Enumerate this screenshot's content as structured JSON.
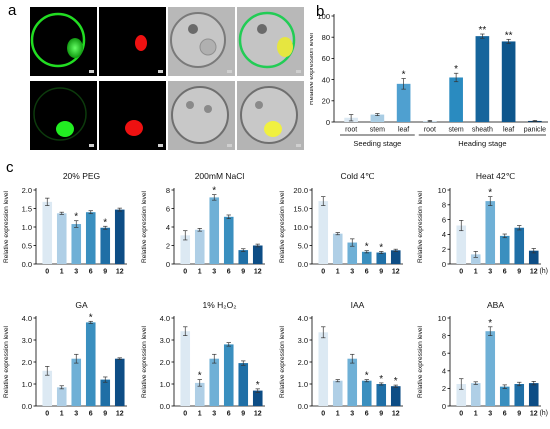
{
  "figure": {
    "panel_a": "a",
    "panel_b": "b",
    "panel_c": "c",
    "microscopy_tiles": [
      {
        "row": 1,
        "channel": "GFP"
      },
      {
        "row": 1,
        "channel": "RFP"
      },
      {
        "row": 1,
        "channel": "Bright"
      },
      {
        "row": 1,
        "channel": "Merge"
      },
      {
        "row": 2,
        "channel": "GFP"
      },
      {
        "row": 2,
        "channel": "RFP"
      },
      {
        "row": 2,
        "channel": "Bright"
      },
      {
        "row": 2,
        "channel": "Merge"
      }
    ],
    "time_unit": "(h)",
    "asterisk": "*",
    "double_asterisk": "**"
  },
  "colors": {
    "shade0": "#dce9f3",
    "shade1": "#afcfe6",
    "shade3": "#6fb0d6",
    "shade6": "#3a8fbf",
    "shade9": "#1f6fa6",
    "shade12": "#0d4d85",
    "gfp": "#22dd22",
    "rfp": "#ee1111"
  },
  "chart_data": [
    {
      "id": "b",
      "type": "bar",
      "ylabel": "Relative expression level",
      "ylim": [
        0,
        100
      ],
      "yticks": [
        0,
        20,
        40,
        60,
        80,
        100
      ],
      "categories": [
        "root",
        "stem",
        "leaf",
        "root",
        "stem",
        "sheath",
        "leaf",
        "panicle"
      ],
      "values": [
        4,
        7,
        36,
        1,
        42,
        81,
        76,
        1
      ],
      "errors": [
        3,
        1,
        5,
        0.5,
        4,
        2,
        2,
        0.5
      ],
      "marks": [
        "",
        "",
        "*",
        "",
        "*",
        "**",
        "**",
        ""
      ],
      "groups": [
        {
          "label": "Seeding stage",
          "from": 0,
          "to": 2
        },
        {
          "label": "Heading stage",
          "from": 3,
          "to": 7
        }
      ]
    },
    {
      "id": "peg",
      "type": "bar",
      "title": "20% PEG",
      "ylabel": "Relative expression level",
      "ylim": [
        0,
        2.0
      ],
      "yticks": [
        "0.0",
        "0.5",
        "1.0",
        "1.5",
        "2.0"
      ],
      "categories": [
        "0",
        "1",
        "3",
        "6",
        "9",
        "12"
      ],
      "values": [
        1.68,
        1.37,
        1.08,
        1.4,
        0.98,
        1.47
      ],
      "errors": [
        0.1,
        0.03,
        0.09,
        0.04,
        0.04,
        0.04
      ],
      "marks": [
        "",
        "",
        "*",
        "",
        "*",
        ""
      ]
    },
    {
      "id": "nacl",
      "type": "bar",
      "title": "200mM NaCl",
      "ylabel": "Relative expression level",
      "ylim": [
        0,
        8
      ],
      "yticks": [
        "0",
        "2",
        "4",
        "6",
        "8"
      ],
      "categories": [
        "0",
        "1",
        "3",
        "6",
        "9",
        "12"
      ],
      "values": [
        3.1,
        3.7,
        7.2,
        5.1,
        1.5,
        2.0
      ],
      "errors": [
        0.5,
        0.15,
        0.3,
        0.2,
        0.15,
        0.15
      ],
      "marks": [
        "",
        "",
        "*",
        "",
        "",
        ""
      ]
    },
    {
      "id": "cold",
      "type": "bar",
      "title": "Cold  4℃",
      "ylabel": "Relative expression level",
      "ylim": [
        0,
        20.0
      ],
      "yticks": [
        "0.0",
        "5.0",
        "10.0",
        "15.0",
        "20.0"
      ],
      "categories": [
        "0",
        "1",
        "3",
        "6",
        "9",
        "12"
      ],
      "values": [
        17.0,
        8.2,
        5.8,
        3.3,
        3.1,
        3.7
      ],
      "errors": [
        1.2,
        0.3,
        1.0,
        0.3,
        0.3,
        0.3
      ],
      "marks": [
        "",
        "",
        "",
        "*",
        "*",
        ""
      ]
    },
    {
      "id": "heat",
      "type": "bar",
      "title": "Heat  42℃",
      "ylabel": "Relative expression level",
      "ylim": [
        0,
        10
      ],
      "yticks": [
        "0",
        "2",
        "4",
        "6",
        "8",
        "10"
      ],
      "categories": [
        "0",
        "1",
        "3",
        "6",
        "9",
        "12"
      ],
      "values": [
        5.2,
        1.3,
        8.5,
        3.8,
        4.9,
        1.8
      ],
      "errors": [
        0.7,
        0.4,
        0.6,
        0.25,
        0.3,
        0.3
      ],
      "marks": [
        "",
        "",
        "*",
        "",
        "",
        ""
      ]
    },
    {
      "id": "ga",
      "type": "bar",
      "title": "GA",
      "ylabel": "Relative expression level",
      "ylim": [
        0,
        4.0
      ],
      "yticks": [
        "0.0",
        "1.0",
        "2.0",
        "3.0",
        "4.0"
      ],
      "categories": [
        "0",
        "1",
        "3",
        "6",
        "9",
        "12"
      ],
      "values": [
        1.6,
        0.85,
        2.15,
        3.8,
        1.2,
        2.15
      ],
      "errors": [
        0.2,
        0.07,
        0.2,
        0.05,
        0.12,
        0.04
      ],
      "marks": [
        "",
        "",
        "",
        "*",
        "",
        ""
      ]
    },
    {
      "id": "h2o2",
      "type": "bar",
      "title": "1% H₂O₂",
      "ylabel": "Relative expression level",
      "ylim": [
        0,
        4.0
      ],
      "yticks": [
        "0.0",
        "1.0",
        "2.0",
        "3.0",
        "4.0"
      ],
      "categories": [
        "0",
        "1",
        "3",
        "6",
        "9",
        "12"
      ],
      "values": [
        3.4,
        1.05,
        2.15,
        2.8,
        1.95,
        0.7
      ],
      "errors": [
        0.2,
        0.15,
        0.2,
        0.08,
        0.1,
        0.08
      ],
      "marks": [
        "",
        "*",
        "",
        "",
        "",
        "*"
      ]
    },
    {
      "id": "iaa",
      "type": "bar",
      "title": "IAA",
      "ylabel": "Relative expression level",
      "ylim": [
        0,
        4.0
      ],
      "yticks": [
        "0.0",
        "1.0",
        "2.0",
        "3.0",
        "4.0"
      ],
      "categories": [
        "0",
        "1",
        "3",
        "6",
        "9",
        "12"
      ],
      "values": [
        3.35,
        1.15,
        2.15,
        1.15,
        1.0,
        0.9
      ],
      "errors": [
        0.25,
        0.05,
        0.2,
        0.05,
        0.05,
        0.05
      ],
      "marks": [
        "",
        "",
        "",
        "*",
        "*",
        "*"
      ]
    },
    {
      "id": "aba",
      "type": "bar",
      "title": "ABA",
      "ylabel": "Relative expression level",
      "ylim": [
        0,
        10
      ],
      "yticks": [
        "0",
        "2",
        "4",
        "6",
        "8",
        "10"
      ],
      "categories": [
        "0",
        "1",
        "3",
        "6",
        "9",
        "12"
      ],
      "values": [
        2.5,
        2.6,
        8.5,
        2.2,
        2.5,
        2.6
      ],
      "errors": [
        0.6,
        0.15,
        0.5,
        0.2,
        0.2,
        0.2
      ],
      "marks": [
        "",
        "",
        "*",
        "",
        "",
        ""
      ]
    }
  ]
}
